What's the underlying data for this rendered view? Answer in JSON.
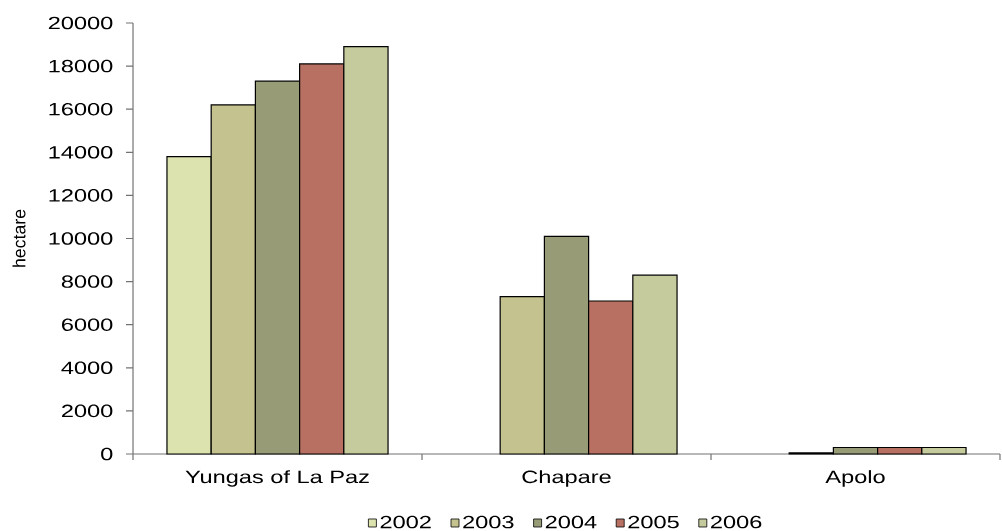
{
  "chart_data": {
    "type": "bar",
    "ylabel": "hectare",
    "categories": [
      "Yungas of La Paz",
      "Chapare",
      "Apolo"
    ],
    "series": [
      {
        "name": "2002",
        "color": "#dde3af",
        "values": [
          13800,
          null,
          null
        ]
      },
      {
        "name": "2003",
        "color": "#c4c38f",
        "values": [
          16200,
          7300,
          50
        ]
      },
      {
        "name": "2004",
        "color": "#979c76",
        "values": [
          17300,
          10100,
          300
        ]
      },
      {
        "name": "2005",
        "color": "#b87062",
        "values": [
          18100,
          7100,
          300
        ]
      },
      {
        "name": "2006",
        "color": "#c6cb9e",
        "values": [
          18900,
          8300,
          300
        ]
      }
    ],
    "ylim": [
      0,
      20000
    ],
    "yticks": [
      0,
      2000,
      4000,
      6000,
      8000,
      10000,
      12000,
      14000,
      16000,
      18000,
      20000
    ],
    "legend": "bottom"
  }
}
